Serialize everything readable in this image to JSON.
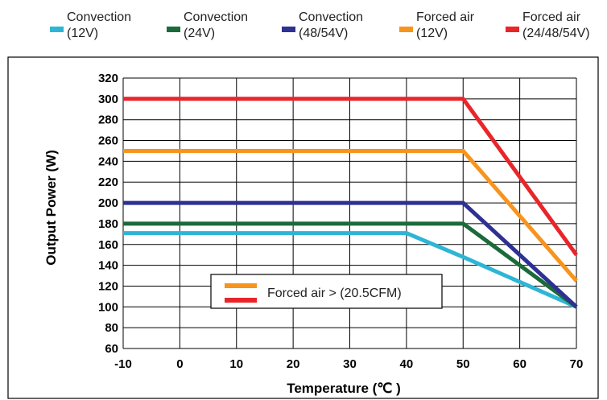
{
  "chart_data": {
    "type": "line",
    "xlabel": "Temperature (℃ )",
    "ylabel": "Output Power (W)",
    "xlim": [
      -10,
      70
    ],
    "ylim": [
      60,
      320
    ],
    "x_ticks": [
      "-10",
      "0",
      "10",
      "20",
      "30",
      "40",
      "50",
      "60",
      "70"
    ],
    "y_ticks": [
      "60",
      "80",
      "100",
      "120",
      "140",
      "160",
      "180",
      "200",
      "220",
      "240",
      "260",
      "280",
      "300",
      "320"
    ],
    "grid": true,
    "legend_position": "top",
    "series": [
      {
        "name": "Convection (12V)",
        "label_lines": [
          "Convection",
          "(12V)"
        ],
        "color": "#2eb5d6",
        "x": [
          -10,
          40,
          50,
          70
        ],
        "y": [
          171,
          171,
          148,
          100
        ]
      },
      {
        "name": "Convection (24V)",
        "label_lines": [
          "Convection",
          "(24V)"
        ],
        "color": "#1b6b3a",
        "x": [
          -10,
          50,
          70
        ],
        "y": [
          180,
          180,
          100
        ]
      },
      {
        "name": "Convection (48/54V)",
        "label_lines": [
          "Convection",
          "(48/54V)"
        ],
        "color": "#2e3192",
        "x": [
          -10,
          50,
          70
        ],
        "y": [
          200,
          200,
          100
        ]
      },
      {
        "name": "Forced air (12V)",
        "label_lines": [
          "Forced air",
          "(12V)"
        ],
        "color": "#f7941d",
        "x": [
          -10,
          50,
          70
        ],
        "y": [
          250,
          250,
          125
        ]
      },
      {
        "name": "Forced air (24/48/54V)",
        "label_lines": [
          "Forced air",
          "(24/48/54V)"
        ],
        "color": "#e8262a",
        "x": [
          -10,
          50,
          70
        ],
        "y": [
          300,
          300,
          150
        ]
      }
    ],
    "annotation": {
      "text": "Forced air > (20.5CFM)",
      "swatch_colors": [
        "#f7941d",
        "#e8262a"
      ]
    }
  }
}
